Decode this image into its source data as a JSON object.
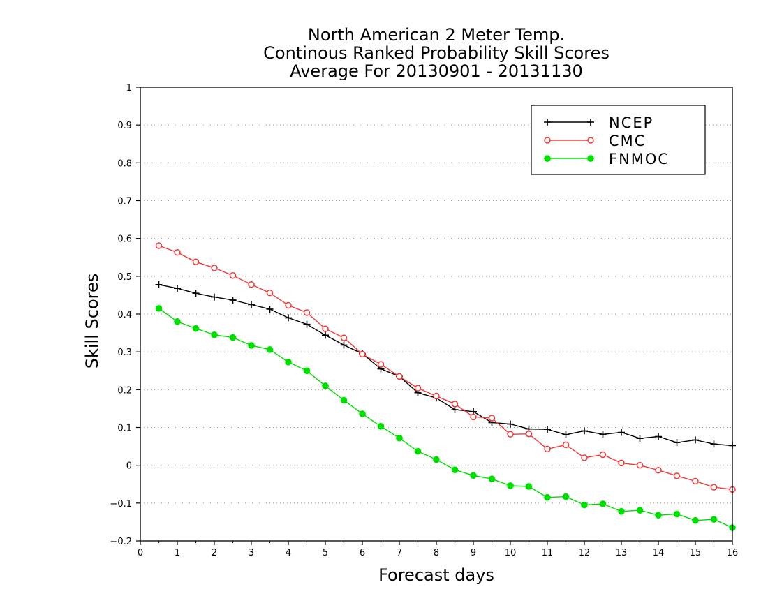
{
  "chart_data": {
    "type": "line",
    "title": [
      "North American 2 Meter Temp.",
      "Continous Ranked Probability Skill Scores",
      "Average For 20130901 - 20131130"
    ],
    "xlabel": "Forecast days",
    "ylabel": "Skill Scores",
    "xlim": [
      0,
      16
    ],
    "ylim": [
      -0.2,
      1
    ],
    "x_ticks": [
      "0",
      "1",
      "2",
      "3",
      "4",
      "5",
      "6",
      "7",
      "8",
      "9",
      "10",
      "11",
      "12",
      "13",
      "14",
      "15",
      "16"
    ],
    "y_ticks": [
      "−0.2",
      "−0.1",
      "0",
      "0.1",
      "0.2",
      "0.3",
      "0.4",
      "0.5",
      "0.6",
      "0.7",
      "0.8",
      "0.9",
      "1"
    ],
    "y_tick_values": [
      -0.2,
      -0.1,
      0,
      0.1,
      0.2,
      0.3,
      0.4,
      0.5,
      0.6,
      0.7,
      0.8,
      0.9,
      1
    ],
    "grid": true,
    "legend_position": "top-right",
    "x": [
      0.5,
      1,
      1.5,
      2,
      2.5,
      3,
      3.5,
      4,
      4.5,
      5,
      5.5,
      6,
      6.5,
      7,
      7.5,
      8,
      8.5,
      9,
      9.5,
      10,
      10.5,
      11,
      11.5,
      12,
      12.5,
      13,
      13.5,
      14,
      14.5,
      15,
      15.5,
      16
    ],
    "series": [
      {
        "name": "NCEP",
        "color": "#000000",
        "marker": "plus",
        "values": [
          0.478,
          0.468,
          0.455,
          0.445,
          0.437,
          0.425,
          0.413,
          0.39,
          0.373,
          0.344,
          0.318,
          0.295,
          0.255,
          0.235,
          0.192,
          0.178,
          0.147,
          0.142,
          0.113,
          0.109,
          0.096,
          0.095,
          0.081,
          0.091,
          0.082,
          0.087,
          0.071,
          0.076,
          0.06,
          0.067,
          0.056,
          0.052
        ]
      },
      {
        "name": "CMC",
        "color": "#ee3b3b",
        "marker": "open-circle",
        "values": [
          0.581,
          0.563,
          0.538,
          0.522,
          0.502,
          0.478,
          0.456,
          0.423,
          0.404,
          0.361,
          0.337,
          0.294,
          0.267,
          0.235,
          0.204,
          0.183,
          0.162,
          0.128,
          0.125,
          0.082,
          0.083,
          0.043,
          0.054,
          0.02,
          0.028,
          0.006,
          0.0,
          -0.013,
          -0.028,
          -0.042,
          -0.058,
          -0.064
        ]
      },
      {
        "name": "FNMOC",
        "color": "#00dd00",
        "marker": "filled-circle",
        "values": [
          0.415,
          0.38,
          0.362,
          0.345,
          0.338,
          0.317,
          0.306,
          0.273,
          0.25,
          0.21,
          0.172,
          0.136,
          0.103,
          0.072,
          0.037,
          0.015,
          -0.012,
          -0.027,
          -0.036,
          -0.054,
          -0.056,
          -0.085,
          -0.083,
          -0.105,
          -0.102,
          -0.122,
          -0.119,
          -0.132,
          -0.129,
          -0.146,
          -0.143,
          -0.165
        ]
      }
    ]
  }
}
